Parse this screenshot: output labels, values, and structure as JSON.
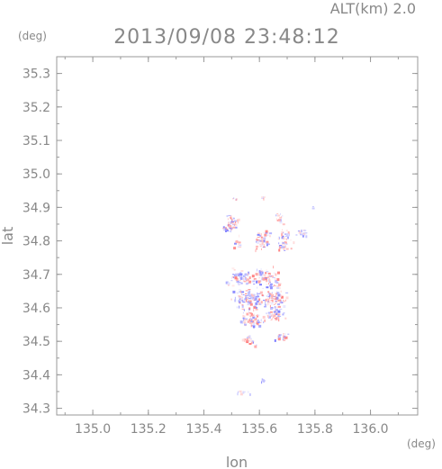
{
  "header": {
    "altitude": "ALT(km) 2.0",
    "timestamp": "2013/09/08 23:48:12"
  },
  "chart_data": {
    "type": "heatmap",
    "title": "2013/09/08 23:48:12",
    "subtitle": "ALT(km) 2.0",
    "xlabel": "lon",
    "ylabel": "lat",
    "x_unit": "(deg)",
    "y_unit": "(deg)",
    "xlim": [
      134.87,
      136.17
    ],
    "ylim": [
      34.28,
      35.35
    ],
    "x_ticks": [
      {
        "value": 135.0,
        "label": "135.0"
      },
      {
        "value": 135.2,
        "label": "135.2"
      },
      {
        "value": 135.4,
        "label": "135.4"
      },
      {
        "value": 135.6,
        "label": "135.6"
      },
      {
        "value": 135.8,
        "label": "135.8"
      },
      {
        "value": 136.0,
        "label": "136.0"
      }
    ],
    "y_ticks": [
      {
        "value": 34.3,
        "label": "34.3"
      },
      {
        "value": 34.4,
        "label": "34.4"
      },
      {
        "value": 34.5,
        "label": "34.5"
      },
      {
        "value": 34.6,
        "label": "34.6"
      },
      {
        "value": 34.7,
        "label": "34.7"
      },
      {
        "value": 34.8,
        "label": "34.8"
      },
      {
        "value": 34.9,
        "label": "34.9"
      },
      {
        "value": 35.0,
        "label": "35.0"
      },
      {
        "value": 35.1,
        "label": "35.1"
      },
      {
        "value": 35.2,
        "label": "35.2"
      },
      {
        "value": 35.3,
        "label": "35.3"
      }
    ],
    "colors": {
      "positive": "#ff5050",
      "negative": "#5050ff",
      "frame": "#999999",
      "text": "#888888"
    },
    "clusters": [
      {
        "lon": 135.5,
        "lat": 34.855,
        "spread_lon": 0.02,
        "spread_lat": 0.022,
        "count": 45,
        "red": 0.5
      },
      {
        "lon": 135.47,
        "lat": 34.84,
        "spread_lon": 0.01,
        "spread_lat": 0.01,
        "count": 10,
        "red": 0.4
      },
      {
        "lon": 135.52,
        "lat": 34.8,
        "spread_lon": 0.012,
        "spread_lat": 0.015,
        "count": 14,
        "red": 0.3
      },
      {
        "lon": 135.61,
        "lat": 34.805,
        "spread_lon": 0.025,
        "spread_lat": 0.025,
        "count": 55,
        "red": 0.6
      },
      {
        "lon": 135.67,
        "lat": 34.87,
        "spread_lon": 0.01,
        "spread_lat": 0.012,
        "count": 12,
        "red": 0.5
      },
      {
        "lon": 135.69,
        "lat": 34.805,
        "spread_lon": 0.025,
        "spread_lat": 0.035,
        "count": 45,
        "red": 0.4
      },
      {
        "lon": 135.75,
        "lat": 34.825,
        "spread_lon": 0.015,
        "spread_lat": 0.01,
        "count": 18,
        "red": 0.3
      },
      {
        "lon": 135.53,
        "lat": 34.69,
        "spread_lon": 0.045,
        "spread_lat": 0.025,
        "count": 70,
        "red": 0.45
      },
      {
        "lon": 135.63,
        "lat": 34.69,
        "spread_lon": 0.045,
        "spread_lat": 0.025,
        "count": 80,
        "red": 0.55
      },
      {
        "lon": 135.56,
        "lat": 34.63,
        "spread_lon": 0.05,
        "spread_lat": 0.025,
        "count": 110,
        "red": 0.45
      },
      {
        "lon": 135.65,
        "lat": 34.63,
        "spread_lon": 0.035,
        "spread_lat": 0.025,
        "count": 80,
        "red": 0.6
      },
      {
        "lon": 135.57,
        "lat": 34.57,
        "spread_lon": 0.04,
        "spread_lat": 0.025,
        "count": 80,
        "red": 0.65
      },
      {
        "lon": 135.65,
        "lat": 34.58,
        "spread_lon": 0.03,
        "spread_lat": 0.02,
        "count": 45,
        "red": 0.5
      },
      {
        "lon": 135.56,
        "lat": 34.505,
        "spread_lon": 0.02,
        "spread_lat": 0.012,
        "count": 25,
        "red": 0.5
      },
      {
        "lon": 135.68,
        "lat": 34.515,
        "spread_lon": 0.02,
        "spread_lat": 0.01,
        "count": 20,
        "red": 0.4
      },
      {
        "lon": 135.61,
        "lat": 34.385,
        "spread_lon": 0.006,
        "spread_lat": 0.005,
        "count": 8,
        "red": 0.1
      },
      {
        "lon": 135.54,
        "lat": 34.35,
        "spread_lon": 0.025,
        "spread_lat": 0.006,
        "count": 8,
        "red": 0.2
      },
      {
        "lon": 135.51,
        "lat": 34.925,
        "spread_lon": 0.008,
        "spread_lat": 0.004,
        "count": 6,
        "red": 0.7
      },
      {
        "lon": 135.61,
        "lat": 34.93,
        "spread_lon": 0.008,
        "spread_lat": 0.004,
        "count": 6,
        "red": 0.7
      },
      {
        "lon": 135.79,
        "lat": 34.9,
        "spread_lon": 0.004,
        "spread_lat": 0.004,
        "count": 2,
        "red": 0.5
      }
    ]
  }
}
